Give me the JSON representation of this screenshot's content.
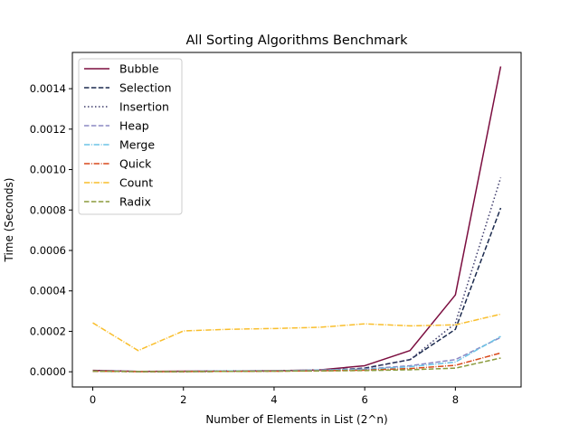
{
  "chart_data": {
    "type": "line",
    "title": "All Sorting Algorithms Benchmark",
    "xlabel": "Number of Elements in List (2^n)",
    "ylabel": "Time (Seconds)",
    "xlim": [
      -0.45,
      9.45
    ],
    "ylim": [
      -7.52e-05,
      0.0015792
    ],
    "grid": false,
    "legend_position": "top-left",
    "x": [
      0,
      1,
      2,
      3,
      4,
      5,
      6,
      7,
      8,
      9
    ],
    "x_ticks": [
      0,
      2,
      4,
      6,
      8
    ],
    "x_tick_labels": [
      "0",
      "2",
      "4",
      "6",
      "8"
    ],
    "y_ticks": [
      0,
      0.0002,
      0.0004,
      0.0006,
      0.0008,
      0.001,
      0.0012,
      0.0014
    ],
    "y_tick_labels": [
      "0.0000",
      "0.0002",
      "0.0004",
      "0.0006",
      "0.0008",
      "0.0010",
      "0.0012",
      "0.0014"
    ],
    "series": [
      {
        "name": "Bubble",
        "color": "#7b0d3f",
        "dash": "solid",
        "values": [
          7e-06,
          2e-06,
          3e-06,
          4e-06,
          5e-06,
          9e-06,
          3e-05,
          0.000105,
          0.00038,
          0.00151
        ]
      },
      {
        "name": "Selection",
        "color": "#1b2a4e",
        "dash": "dashed",
        "values": [
          3e-06,
          1e-06,
          1e-06,
          2e-06,
          4e-06,
          7e-06,
          1.8e-05,
          6e-05,
          0.00021,
          0.00081
        ]
      },
      {
        "name": "Insertion",
        "color": "#3e3c6b",
        "dash": "dotted",
        "values": [
          2e-06,
          1e-06,
          1e-06,
          2e-06,
          3e-06,
          6e-06,
          1.7e-05,
          6e-05,
          0.00024,
          0.00096
        ]
      },
      {
        "name": "Heap",
        "color": "#8c88c4",
        "dash": "dashed",
        "values": [
          4e-06,
          2e-06,
          2e-06,
          4e-06,
          5e-06,
          9e-06,
          1.4e-05,
          3e-05,
          6e-05,
          0.00017
        ]
      },
      {
        "name": "Merge",
        "color": "#6bc3e6",
        "dash": "dashdot",
        "values": [
          4e-06,
          2e-06,
          2e-06,
          4e-06,
          5e-06,
          8e-06,
          1.2e-05,
          2.5e-05,
          4.8e-05,
          0.000175
        ]
      },
      {
        "name": "Quick",
        "color": "#d9481a",
        "dash": "dashdot",
        "values": [
          3e-06,
          1e-06,
          1e-06,
          2e-06,
          3e-06,
          5e-06,
          8e-06,
          1.6e-05,
          3.2e-05,
          9.3e-05
        ]
      },
      {
        "name": "Count",
        "color": "#f9be2c",
        "dash": "dashdot",
        "values": [
          0.000242,
          0.000105,
          0.000202,
          0.00021,
          0.000214,
          0.00022,
          0.000237,
          0.000227,
          0.000232,
          0.000285
        ]
      },
      {
        "name": "Radix",
        "color": "#8a9a3b",
        "dash": "dashed",
        "values": [
          3e-06,
          1e-06,
          1e-06,
          2e-06,
          3e-06,
          4e-06,
          6e-06,
          1e-05,
          1.8e-05,
          6.8e-05
        ]
      }
    ]
  }
}
